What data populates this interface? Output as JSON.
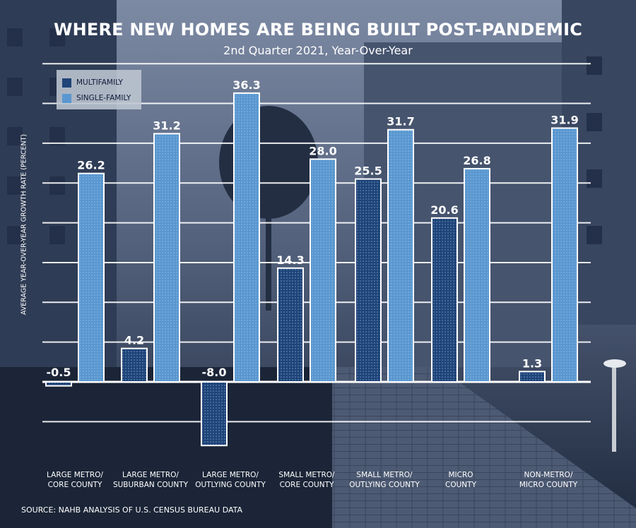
{
  "title": "WHERE NEW HOMES ARE BEING BUILT POST-PANDEMIC",
  "subtitle": "2nd Quarter 2021, Year-Over-Year",
  "source": "SOURCE: NAHB ANALYSIS OF U.S. CENSUS BUREAU DATA",
  "colors": {
    "multifamily": "#1f4478",
    "single_family": "#5a97d0",
    "background": "#2b3850",
    "gridline": "#ffffff"
  },
  "legend": [
    {
      "label": "MULTIFAMILY",
      "color": "#1f4478"
    },
    {
      "label": "SINGLE-FAMILY",
      "color": "#5a97d0"
    }
  ],
  "chart_data": {
    "type": "bar",
    "title": "WHERE NEW HOMES ARE BEING BUILT POST-PANDEMIC",
    "subtitle": "2nd Quarter 2021, Year-Over-Year",
    "ylabel": "AVERAGE YEAR-OVER-YEAR GROWTH RATE (PERCENT)",
    "xlabel": "",
    "categories": [
      [
        "LARGE METRO/",
        "CORE COUNTY"
      ],
      [
        "LARGE METRO/",
        "SUBURBAN COUNTY"
      ],
      [
        "LARGE METRO/",
        "OUTLYING COUNTY"
      ],
      [
        "SMALL METRO/",
        "CORE COUNTY"
      ],
      [
        "SMALL METRO/",
        "OUTLYING COUNTY"
      ],
      [
        "MICRO",
        "COUNTY"
      ],
      [
        "NON-METRO/",
        "MICRO COUNTY"
      ]
    ],
    "series": [
      {
        "name": "MULTIFAMILY",
        "values": [
          -0.5,
          4.2,
          -8.0,
          14.3,
          25.5,
          20.6,
          1.3
        ],
        "labels": [
          "-0.5",
          "4.2",
          "-8.0",
          "14.3",
          "25.5",
          "20.6",
          "1.3"
        ]
      },
      {
        "name": "SINGLE-FAMILY",
        "values": [
          26.2,
          31.2,
          36.3,
          28.0,
          31.7,
          26.8,
          31.9
        ],
        "labels": [
          "26.2",
          "31.2",
          "36.3",
          "28.0",
          "31.7",
          "26.8",
          "31.9"
        ]
      }
    ],
    "ylim": [
      -10,
      40
    ],
    "grid": true,
    "legend_position": "top-left"
  }
}
